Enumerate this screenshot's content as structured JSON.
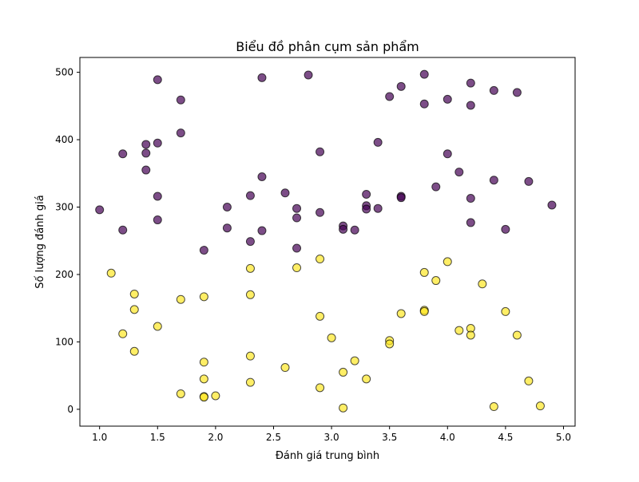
{
  "chart_data": {
    "type": "scatter",
    "title": "Biểu đồ phân cụm sản phẩm",
    "xlabel": "Đánh giá trung bình",
    "ylabel": "Số lượng đánh giá",
    "xlim": [
      0.83,
      5.1
    ],
    "ylim": [
      -25,
      522
    ],
    "xticks": [
      1.0,
      1.5,
      2.0,
      2.5,
      3.0,
      3.5,
      4.0,
      4.5,
      5.0
    ],
    "xtick_labels": [
      "1.0",
      "1.5",
      "2.0",
      "2.5",
      "3.0",
      "3.5",
      "4.0",
      "4.5",
      "5.0"
    ],
    "yticks": [
      0,
      100,
      200,
      300,
      400,
      500
    ],
    "ytick_labels": [
      "0",
      "100",
      "200",
      "300",
      "400",
      "500"
    ],
    "grid": false,
    "colors": {
      "cluster_high": "#440154",
      "cluster_low": "#fde725",
      "edge": "#000000"
    },
    "series": [
      {
        "color": "#440154",
        "points": [
          [
            1.0,
            296
          ],
          [
            1.2,
            266
          ],
          [
            1.2,
            379
          ],
          [
            1.4,
            393
          ],
          [
            1.4,
            380
          ],
          [
            1.4,
            355
          ],
          [
            1.5,
            489
          ],
          [
            1.5,
            395
          ],
          [
            1.5,
            316
          ],
          [
            1.5,
            281
          ],
          [
            1.7,
            459
          ],
          [
            1.7,
            410
          ],
          [
            1.9,
            236
          ],
          [
            2.1,
            300
          ],
          [
            2.1,
            269
          ],
          [
            2.3,
            317
          ],
          [
            2.3,
            249
          ],
          [
            2.4,
            492
          ],
          [
            2.4,
            345
          ],
          [
            2.4,
            265
          ],
          [
            2.6,
            321
          ],
          [
            2.7,
            298
          ],
          [
            2.7,
            284
          ],
          [
            2.7,
            239
          ],
          [
            2.8,
            496
          ],
          [
            2.9,
            382
          ],
          [
            2.9,
            292
          ],
          [
            3.1,
            272
          ],
          [
            3.1,
            267
          ],
          [
            3.2,
            266
          ],
          [
            3.3,
            319
          ],
          [
            3.3,
            302
          ],
          [
            3.3,
            297
          ],
          [
            3.4,
            396
          ],
          [
            3.4,
            298
          ],
          [
            3.5,
            464
          ],
          [
            3.6,
            479
          ],
          [
            3.6,
            316
          ],
          [
            3.6,
            314
          ],
          [
            3.8,
            497
          ],
          [
            3.8,
            453
          ],
          [
            3.9,
            330
          ],
          [
            4.0,
            460
          ],
          [
            4.0,
            379
          ],
          [
            4.1,
            352
          ],
          [
            4.2,
            484
          ],
          [
            4.2,
            451
          ],
          [
            4.2,
            313
          ],
          [
            4.2,
            277
          ],
          [
            4.4,
            473
          ],
          [
            4.4,
            340
          ],
          [
            4.5,
            267
          ],
          [
            4.6,
            470
          ],
          [
            4.7,
            338
          ],
          [
            4.9,
            303
          ]
        ]
      },
      {
        "color": "#fde725",
        "points": [
          [
            1.1,
            202
          ],
          [
            1.2,
            112
          ],
          [
            1.3,
            171
          ],
          [
            1.3,
            148
          ],
          [
            1.3,
            86
          ],
          [
            1.5,
            123
          ],
          [
            1.7,
            163
          ],
          [
            1.7,
            23
          ],
          [
            1.9,
            167
          ],
          [
            1.9,
            70
          ],
          [
            1.9,
            45
          ],
          [
            1.9,
            19
          ],
          [
            1.9,
            18
          ],
          [
            2.0,
            20
          ],
          [
            2.3,
            209
          ],
          [
            2.3,
            170
          ],
          [
            2.3,
            79
          ],
          [
            2.3,
            40
          ],
          [
            2.6,
            62
          ],
          [
            2.7,
            210
          ],
          [
            2.9,
            223
          ],
          [
            2.9,
            138
          ],
          [
            2.9,
            32
          ],
          [
            3.0,
            106
          ],
          [
            3.1,
            55
          ],
          [
            3.1,
            2
          ],
          [
            3.2,
            72
          ],
          [
            3.3,
            45
          ],
          [
            3.5,
            102
          ],
          [
            3.5,
            97
          ],
          [
            3.6,
            142
          ],
          [
            3.8,
            203
          ],
          [
            3.8,
            147
          ],
          [
            3.8,
            145
          ],
          [
            3.9,
            191
          ],
          [
            4.0,
            219
          ],
          [
            4.1,
            117
          ],
          [
            4.2,
            120
          ],
          [
            4.2,
            110
          ],
          [
            4.3,
            186
          ],
          [
            4.4,
            4
          ],
          [
            4.5,
            145
          ],
          [
            4.6,
            110
          ],
          [
            4.7,
            42
          ],
          [
            4.8,
            5
          ]
        ]
      }
    ]
  }
}
